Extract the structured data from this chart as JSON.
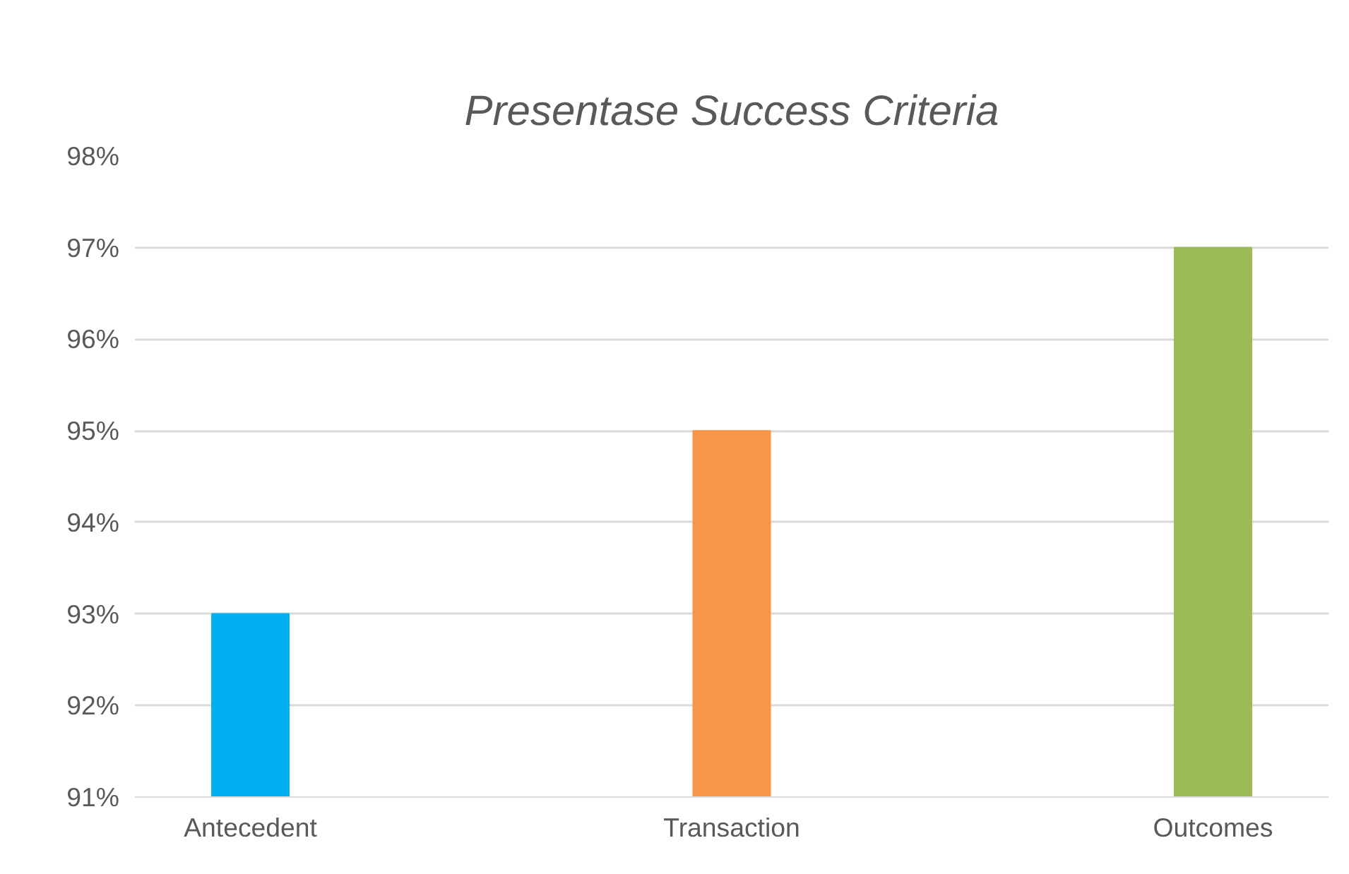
{
  "chart_data": {
    "type": "bar",
    "title": "Presentase Success Criteria",
    "categories": [
      "Antecedent",
      "Transaction",
      "Outcomes"
    ],
    "values": [
      93,
      95,
      97
    ],
    "colors": [
      "#00b0f0",
      "#f79646",
      "#9bbb59"
    ],
    "ylim": [
      91,
      98
    ],
    "yticks": [
      {
        "value": 91,
        "label": "91%"
      },
      {
        "value": 92,
        "label": "92%"
      },
      {
        "value": 93,
        "label": "93%"
      },
      {
        "value": 94,
        "label": "94%"
      },
      {
        "value": 95,
        "label": "95%"
      },
      {
        "value": 96,
        "label": "96%"
      },
      {
        "value": 97,
        "label": "97%"
      },
      {
        "value": 98,
        "label": "98%"
      }
    ],
    "grid": "y"
  }
}
